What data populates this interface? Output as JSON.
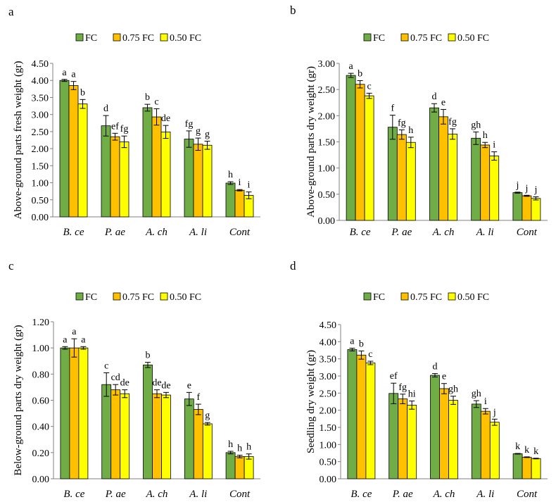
{
  "chart_data": [
    {
      "type": "bar",
      "panel_label": "a",
      "ylabel": "Above-ground parts fresh weight (gr)",
      "xlabel": "",
      "categories": [
        "B. ce",
        "P. ae",
        "A. ch",
        "A. li",
        "Cont"
      ],
      "legend": [
        "FC",
        "0.75 FC",
        "0.50 FC"
      ],
      "ylim": [
        0,
        4.5
      ],
      "yticks": [
        "0.00",
        "0.50",
        "1.00",
        "1.50",
        "2.00",
        "2.50",
        "3.00",
        "3.50",
        "4.00",
        "4.50"
      ],
      "series": [
        {
          "name": "FC",
          "values": [
            4.0,
            2.67,
            3.2,
            2.28,
            0.99
          ],
          "errors": [
            0.03,
            0.3,
            0.1,
            0.24,
            0.04
          ],
          "letters": [
            "a",
            "d",
            "b",
            "fg",
            "h"
          ]
        },
        {
          "name": "0.75 FC",
          "values": [
            3.85,
            2.35,
            2.93,
            2.13,
            0.78
          ],
          "errors": [
            0.12,
            0.1,
            0.24,
            0.18,
            0.02
          ],
          "letters": [
            "a",
            "ef",
            "c",
            "g",
            "i"
          ]
        },
        {
          "name": "0.50 FC",
          "values": [
            3.31,
            2.2,
            2.49,
            2.1,
            0.63
          ],
          "errors": [
            0.13,
            0.17,
            0.19,
            0.12,
            0.1
          ],
          "letters": [
            "b",
            "fg",
            "de",
            "g",
            "i"
          ]
        }
      ]
    },
    {
      "type": "bar",
      "panel_label": "b",
      "ylabel": "Above-ground parts dry weight (gr)",
      "xlabel": "",
      "categories": [
        "B. ce",
        "P. ae",
        "A. ch",
        "A. li",
        "Cont"
      ],
      "legend": [
        "FC",
        "0.75 FC",
        "0.50 FC"
      ],
      "ylim": [
        0,
        3.0
      ],
      "yticks": [
        "0.00",
        "0.50",
        "1.00",
        "1.50",
        "2.00",
        "2.50",
        "3.00"
      ],
      "series": [
        {
          "name": "FC",
          "values": [
            2.77,
            1.78,
            2.15,
            1.57,
            0.53
          ],
          "errors": [
            0.04,
            0.23,
            0.08,
            0.12,
            0.01
          ],
          "letters": [
            "a",
            "f",
            "d",
            "gh",
            "j"
          ]
        },
        {
          "name": "0.75 FC",
          "values": [
            2.6,
            1.64,
            1.98,
            1.44,
            0.47
          ],
          "errors": [
            0.07,
            0.09,
            0.14,
            0.05,
            0.01
          ],
          "letters": [
            "b",
            "fg",
            "e",
            "h",
            "j"
          ]
        },
        {
          "name": "0.50 FC",
          "values": [
            2.38,
            1.49,
            1.65,
            1.23,
            0.42
          ],
          "errors": [
            0.05,
            0.1,
            0.1,
            0.08,
            0.03
          ],
          "letters": [
            "c",
            "h",
            "fg",
            "i",
            "j"
          ]
        }
      ]
    },
    {
      "type": "bar",
      "panel_label": "c",
      "ylabel": "Below-ground parts dry weight (gr)",
      "xlabel": "",
      "categories": [
        "B. ce",
        "P. ae",
        "A. ch",
        "A. li",
        "Cont"
      ],
      "legend": [
        "FC",
        "0.75 FC",
        "0.50 FC"
      ],
      "ylim": [
        0,
        1.2
      ],
      "yticks": [
        "0.00",
        "0.20",
        "0.40",
        "0.60",
        "0.80",
        "1.00",
        "1.20"
      ],
      "series": [
        {
          "name": "FC",
          "values": [
            1.0,
            0.72,
            0.87,
            0.61,
            0.2
          ],
          "errors": [
            0.01,
            0.09,
            0.02,
            0.05,
            0.01
          ],
          "letters": [
            "a",
            "c",
            "b",
            "e",
            "h"
          ]
        },
        {
          "name": "0.75 FC",
          "values": [
            1.0,
            0.68,
            0.65,
            0.53,
            0.17
          ],
          "errors": [
            0.07,
            0.04,
            0.03,
            0.04,
            0.01
          ],
          "letters": [
            "a",
            "cd",
            "de",
            "f",
            "h"
          ]
        },
        {
          "name": "0.50 FC",
          "values": [
            1.0,
            0.65,
            0.64,
            0.42,
            0.17
          ],
          "errors": [
            0.01,
            0.03,
            0.02,
            0.01,
            0.02
          ],
          "letters": [
            "a",
            "de",
            "de",
            "g",
            "h"
          ]
        }
      ]
    },
    {
      "type": "bar",
      "panel_label": "d",
      "ylabel": "Seedling dry weight (gr)",
      "xlabel": "",
      "categories": [
        "B. ce",
        "P. ae",
        "A. ch",
        "A. li",
        "Cont"
      ],
      "legend": [
        "FC",
        "0.75 FC",
        "0.50 FC"
      ],
      "ylim": [
        0,
        4.5
      ],
      "yticks": [
        "0.00",
        "0.50",
        "1.00",
        "1.50",
        "2.00",
        "2.50",
        "3.00",
        "3.50",
        "4.00",
        "4.50"
      ],
      "series": [
        {
          "name": "FC",
          "values": [
            3.77,
            2.49,
            3.02,
            2.18,
            0.73
          ],
          "errors": [
            0.04,
            0.3,
            0.05,
            0.1,
            0.01
          ],
          "letters": [
            "a",
            "ef",
            "d",
            "gh",
            "k"
          ]
        },
        {
          "name": "0.75 FC",
          "values": [
            3.61,
            2.33,
            2.63,
            1.97,
            0.63
          ],
          "errors": [
            0.12,
            0.14,
            0.15,
            0.08,
            0.01
          ],
          "letters": [
            "b",
            "fg",
            "e",
            "i",
            "k"
          ]
        },
        {
          "name": "0.50 FC",
          "values": [
            3.38,
            2.15,
            2.29,
            1.65,
            0.59
          ],
          "errors": [
            0.05,
            0.12,
            0.12,
            0.09,
            0.01
          ],
          "letters": [
            "c",
            "hi",
            "gh",
            "j",
            "k"
          ]
        }
      ]
    }
  ],
  "colors": {
    "FC": "#70ad47",
    "0.75 FC": "#ffc000",
    "0.50 FC": "#ffff00",
    "axis": "#808080",
    "bar_stroke": "#000000"
  }
}
